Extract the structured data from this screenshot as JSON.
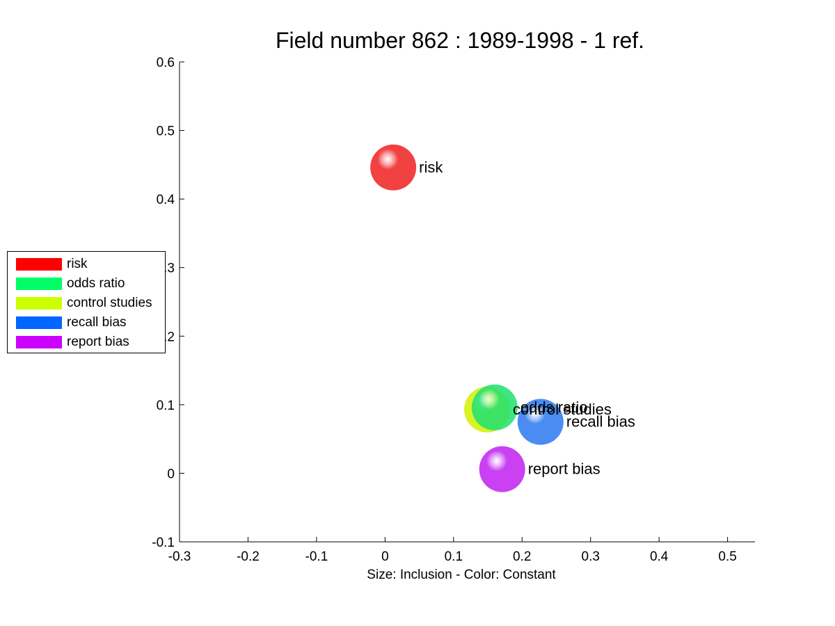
{
  "chart_data": {
    "type": "scatter",
    "title": "Field number 862 : 1989-1998  - 1 ref.",
    "xlabel": "Size: Inclusion - Color: Constant",
    "ylabel": "",
    "xlim": [
      -0.3,
      0.54
    ],
    "ylim": [
      -0.1,
      0.6
    ],
    "xticks": [
      "-0.3",
      "-0.2",
      "-0.1",
      "0",
      "0.1",
      "0.2",
      "0.3",
      "0.4",
      "0.5"
    ],
    "yticks": [
      "-0.1",
      "0",
      "0.1",
      "0.2",
      "0.3",
      "0.4",
      "0.5",
      "0.6"
    ],
    "grid": false,
    "legend_position": "left",
    "points": [
      {
        "label": "risk",
        "x": 0.012,
        "y": 0.446,
        "color": "#f02020"
      },
      {
        "label": "control studies",
        "x": 0.149,
        "y": 0.093,
        "color": "#d4f000"
      },
      {
        "label": "odds ratio",
        "x": 0.16,
        "y": 0.096,
        "color": "#20e070"
      },
      {
        "label": "recall bias",
        "x": 0.227,
        "y": 0.075,
        "color": "#2a78f0"
      },
      {
        "label": "report bias",
        "x": 0.171,
        "y": 0.006,
        "color": "#c020f0"
      }
    ]
  },
  "legend": {
    "items": [
      {
        "label": "risk",
        "color": "#ff0000"
      },
      {
        "label": "odds ratio",
        "color": "#00ff66"
      },
      {
        "label": "control studies",
        "color": "#ccff00"
      },
      {
        "label": "recall bias",
        "color": "#0066ff"
      },
      {
        "label": "report bias",
        "color": "#cc00ff"
      }
    ]
  }
}
